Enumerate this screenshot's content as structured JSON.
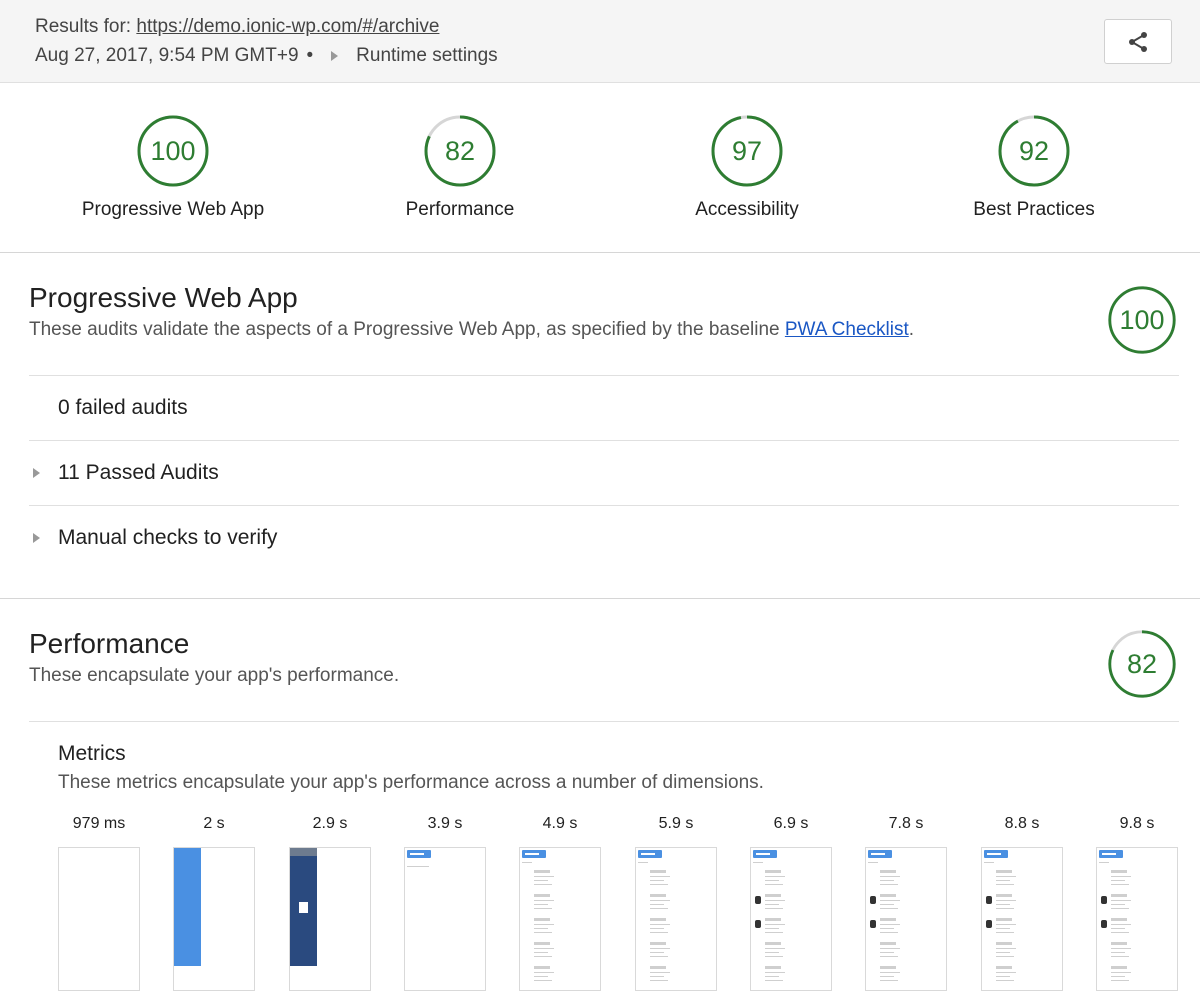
{
  "header": {
    "results_prefix": "Results for: ",
    "url": "https://demo.ionic-wp.com/#/archive",
    "date": "Aug 27, 2017, 9:54 PM GMT+9",
    "separator": "•",
    "runtime_settings": "Runtime settings",
    "share_icon": "share-icon"
  },
  "scores": [
    {
      "label": "Progressive Web App",
      "value": "100",
      "fraction": 1.0
    },
    {
      "label": "Performance",
      "value": "82",
      "fraction": 0.82
    },
    {
      "label": "Accessibility",
      "value": "97",
      "fraction": 0.97
    },
    {
      "label": "Best Practices",
      "value": "92",
      "fraction": 0.92
    }
  ],
  "pwa": {
    "title": "Progressive Web App",
    "desc_before": "These audits validate the aspects of a Progressive Web App, as specified by the baseline ",
    "desc_link": "PWA Checklist",
    "desc_after": ".",
    "score": "100",
    "score_fraction": 1.0,
    "failed": "0 failed audits",
    "passed": "11 Passed Audits",
    "manual": "Manual checks to verify"
  },
  "performance": {
    "title": "Performance",
    "desc": "These encapsulate your app's performance.",
    "score": "82",
    "score_fraction": 0.82,
    "metrics_title": "Metrics",
    "metrics_desc": "These metrics encapsulate your app's performance across a number of dimensions.",
    "filmstrip": [
      "979 ms",
      "2 s",
      "2.9 s",
      "3.9 s",
      "4.9 s",
      "5.9 s",
      "6.9 s",
      "7.8 s",
      "8.8 s",
      "9.8 s"
    ]
  },
  "colors": {
    "pass_green": "#2e7d32",
    "gauge_track": "#d6d6d6",
    "link_blue": "#1a57c4",
    "splash_blue": "#4a90e2",
    "splash_navy": "#2a4a7f"
  }
}
